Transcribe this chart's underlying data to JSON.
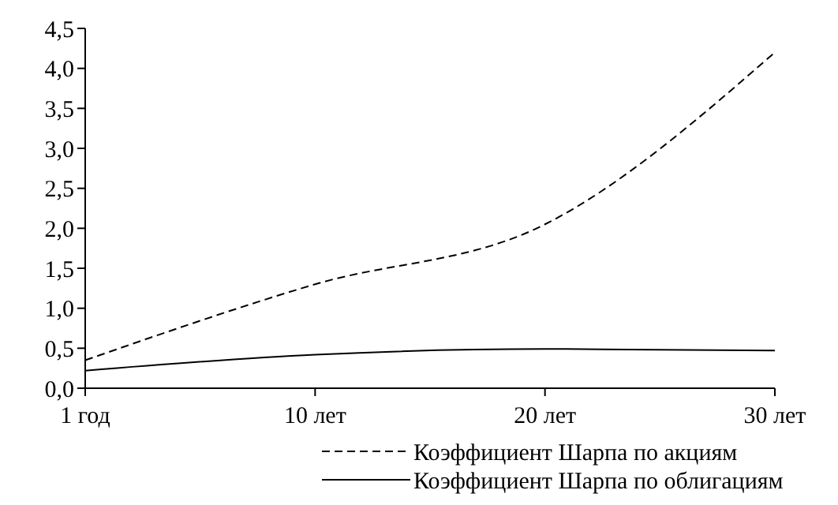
{
  "chart_data": {
    "type": "line",
    "categories": [
      "1 год",
      "10 лет",
      "20 лет",
      "30 лет"
    ],
    "series": [
      {
        "name": "Коэффициент Шарпа по акциям",
        "color": "#000000",
        "line_style": "dashed",
        "values": [
          0.35,
          1.3,
          2.05,
          4.2
        ]
      },
      {
        "name": "Коэффициент Шарпа по облигациям",
        "color": "#000000",
        "line_style": "solid",
        "values": [
          0.22,
          0.42,
          0.49,
          0.47
        ]
      }
    ],
    "ylim": [
      0,
      4.5
    ],
    "yticks": [
      {
        "value": 0,
        "label": "0,0"
      },
      {
        "value": 0.5,
        "label": "0,5"
      },
      {
        "value": 1,
        "label": "1,0"
      },
      {
        "value": 1.5,
        "label": "1,5"
      },
      {
        "value": 2,
        "label": "2,0"
      },
      {
        "value": 2.5,
        "label": "2,5"
      },
      {
        "value": 3,
        "label": "3,0"
      },
      {
        "value": 3.5,
        "label": "3,5"
      },
      {
        "value": 4,
        "label": "4,0"
      },
      {
        "value": 4.5,
        "label": "4,5"
      }
    ],
    "grid": false,
    "legend": "bottom",
    "marker": "none"
  }
}
